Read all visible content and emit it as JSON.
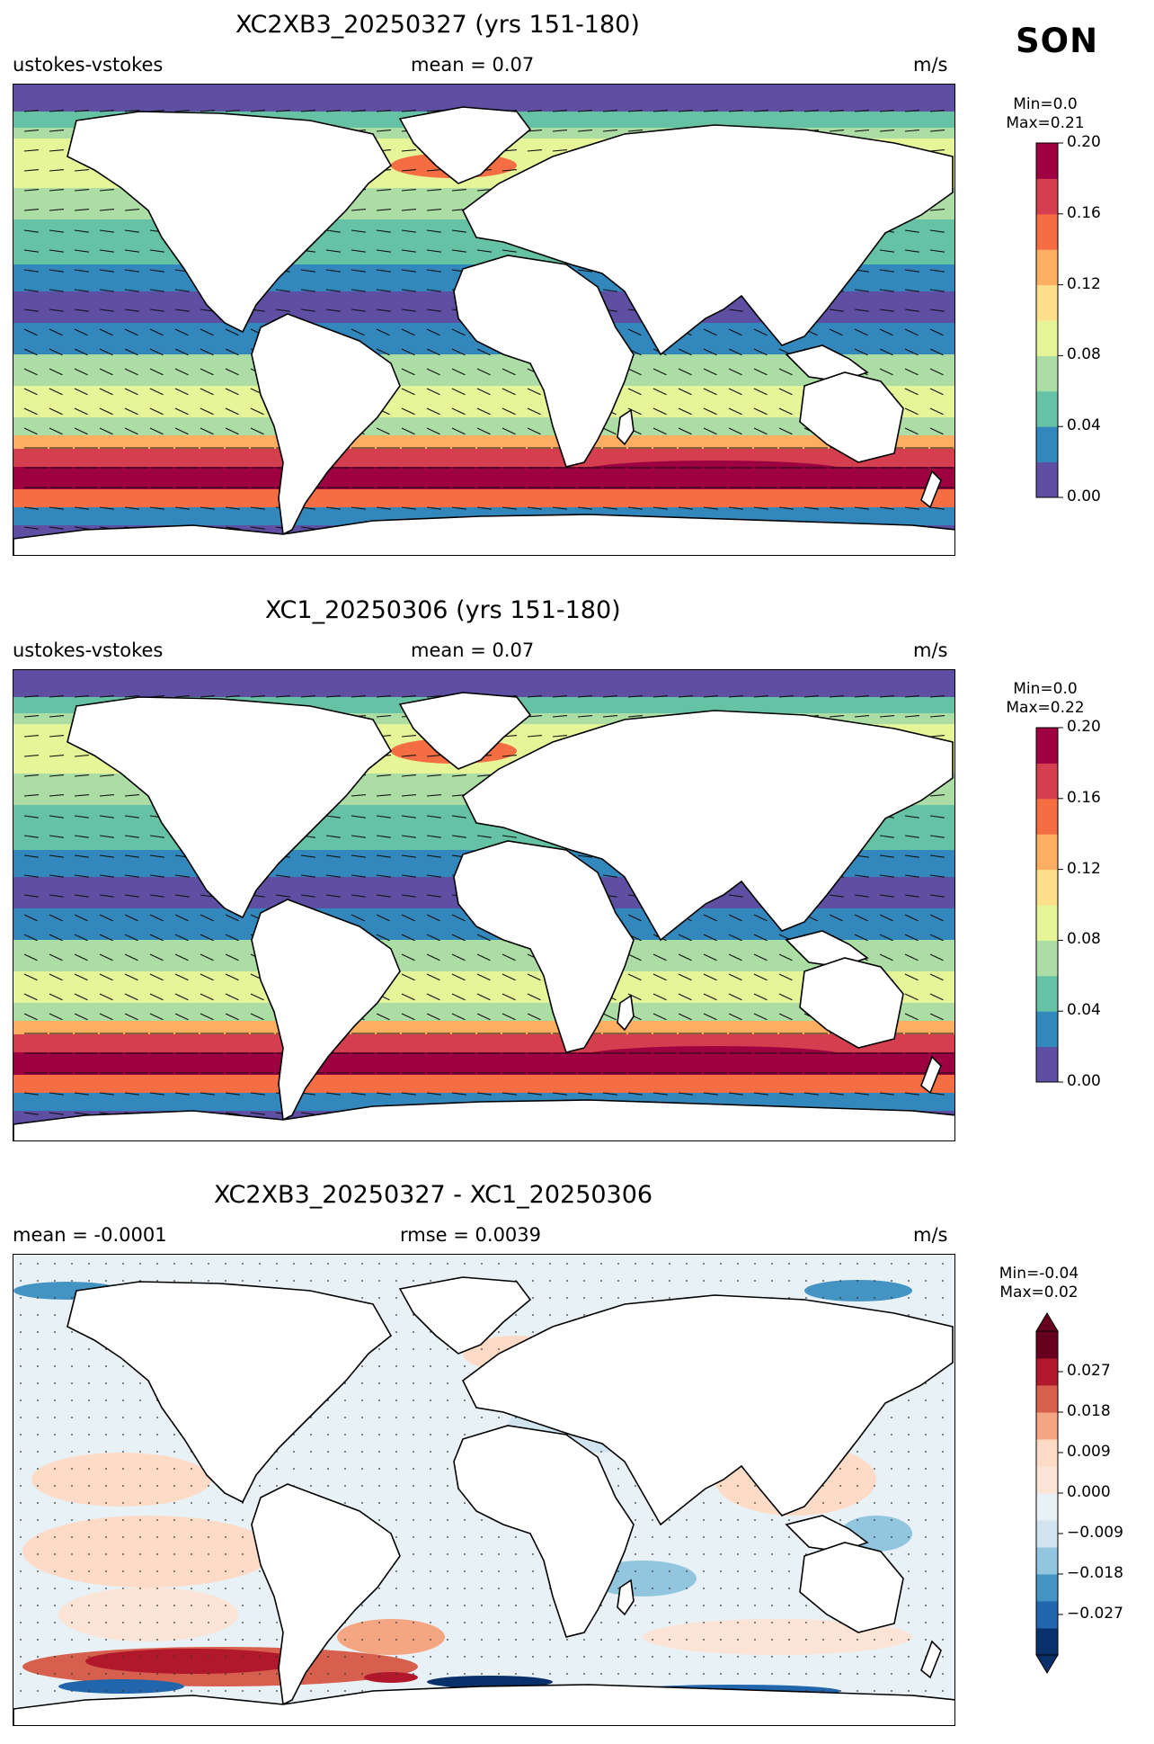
{
  "season": "SON",
  "panels": [
    {
      "title": "XC2XB3_20250327 (yrs 151-180)",
      "left": "ustokes-vstokes",
      "center": "mean = 0.07",
      "right": "m/s",
      "cbar_min": "Min=0.0",
      "cbar_max": "Max=0.21",
      "cbar_ticks": [
        "0.20",
        "0.16",
        "0.12",
        "0.08",
        "0.04",
        "0.00"
      ],
      "kind": "full"
    },
    {
      "title": "XC1_20250306 (yrs 151-180)",
      "left": "ustokes-vstokes",
      "center": "mean = 0.07",
      "right": "m/s",
      "cbar_min": "Min=0.0",
      "cbar_max": "Max=0.22",
      "cbar_ticks": [
        "0.20",
        "0.16",
        "0.12",
        "0.08",
        "0.04",
        "0.00"
      ],
      "kind": "full"
    },
    {
      "title": "XC2XB3_20250327 - XC1_20250306",
      "left": "mean = -0.0001",
      "center": "rmse = 0.0039",
      "right": "m/s",
      "cbar_min": "Min=-0.04",
      "cbar_max": "Max=0.02",
      "cbar_ticks": [
        "0.027",
        "0.018",
        "0.009",
        "0.000",
        "−0.009",
        "−0.018",
        "−0.027"
      ],
      "kind": "diff"
    }
  ],
  "colors": {
    "full": [
      "#5e4fa2",
      "#3288bd",
      "#66c2a5",
      "#abdda4",
      "#e6f598",
      "#fee08b",
      "#fdae61",
      "#f46d43",
      "#d53e4f",
      "#9e0142"
    ],
    "diff": [
      "#08306b",
      "#2166ac",
      "#4393c3",
      "#92c5de",
      "#d1e5f0",
      "#e8f1f6",
      "#fbe4d6",
      "#fddbc7",
      "#f4a582",
      "#d6604d",
      "#b2182b",
      "#67001f"
    ]
  }
}
